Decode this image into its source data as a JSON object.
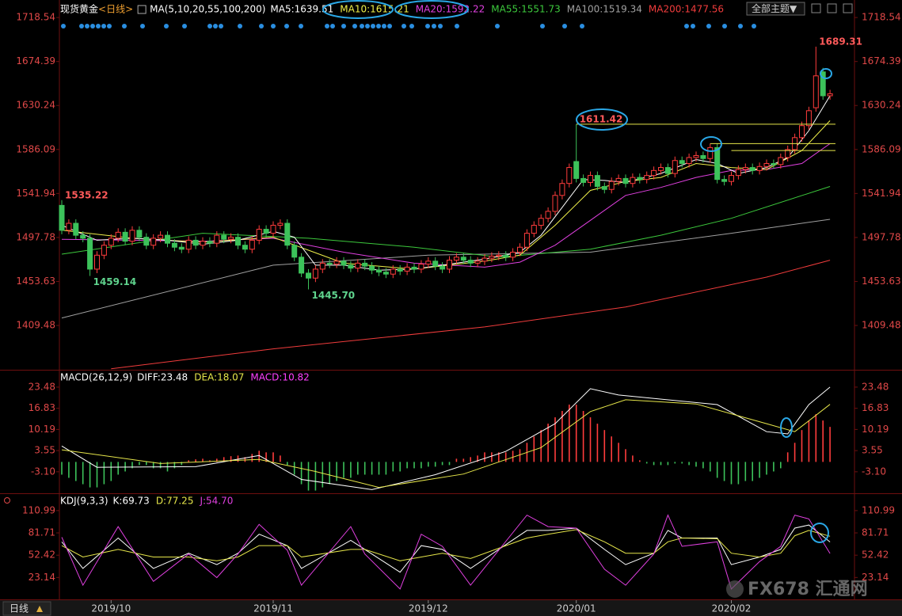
{
  "chart_data": [
    {
      "type": "candlestick",
      "title": "现货黄金",
      "period": "<日线>",
      "ma_label": "MA(5,10,20,55,100,200)",
      "categories": [
        null,
        null,
        null,
        null,
        null,
        null,
        null,
        "2019/10",
        null,
        null,
        null,
        null,
        null,
        null,
        null,
        null,
        null,
        null,
        null,
        null,
        null,
        null,
        null,
        null,
        null,
        null,
        null,
        null,
        null,
        null,
        "2019/11",
        null,
        null,
        null,
        null,
        null,
        null,
        null,
        null,
        null,
        null,
        null,
        null,
        null,
        null,
        null,
        null,
        null,
        null,
        null,
        null,
        null,
        "2019/12",
        null,
        null,
        null,
        null,
        null,
        null,
        null,
        null,
        null,
        null,
        null,
        null,
        null,
        null,
        null,
        null,
        null,
        null,
        null,
        null,
        "2020/01",
        null,
        null,
        null,
        null,
        null,
        null,
        null,
        null,
        null,
        null,
        null,
        null,
        null,
        null,
        null,
        null,
        null,
        null,
        null,
        null,
        null,
        "2020/02",
        null,
        null,
        null,
        null,
        null,
        null,
        null,
        null,
        null,
        null,
        null,
        null,
        null,
        null
      ],
      "open": [
        1530,
        1505,
        1512,
        1500,
        1497,
        1466,
        1480,
        1490,
        1497,
        1503,
        1494,
        1505,
        1498,
        1490,
        1497,
        1500,
        1492,
        1488,
        1486,
        1495,
        1490,
        1494,
        1492,
        1500,
        1496,
        1498,
        1490,
        1486,
        1495,
        1506,
        1502,
        1510,
        1512,
        1490,
        1478,
        1462,
        1457,
        1466,
        1472,
        1471,
        1474,
        1470,
        1467,
        1472,
        1469,
        1465,
        1463,
        1461,
        1466,
        1464,
        1468,
        1466,
        1471,
        1474,
        1469,
        1466,
        1475,
        1478,
        1475,
        1472,
        1474,
        1477,
        1479,
        1480,
        1478,
        1483,
        1488,
        1502,
        1510,
        1517,
        1524,
        1540,
        1552,
        1574,
        1557,
        1553,
        1560,
        1549,
        1546,
        1554,
        1557,
        1552,
        1558,
        1556,
        1560,
        1565,
        1568,
        1562,
        1575,
        1572,
        1578,
        1580,
        1577,
        1588,
        1556,
        1554,
        1560,
        1566,
        1568,
        1565,
        1569,
        1572,
        1571,
        1578,
        1586,
        1598,
        1610,
        1628,
        1664,
        1640
      ],
      "high": [
        1535.22,
        1516,
        1516,
        1504,
        1501,
        1484,
        1494,
        1501,
        1507,
        1507,
        1509,
        1509,
        1502,
        1501,
        1504,
        1504,
        1496,
        1492,
        1499,
        1499,
        1498,
        1498,
        1504,
        1504,
        1502,
        1502,
        1494,
        1499,
        1510,
        1510,
        1514,
        1516,
        1516,
        1494,
        1482,
        1466,
        1470,
        1476,
        1476,
        1478,
        1478,
        1474,
        1476,
        1476,
        1473,
        1469,
        1467,
        1470,
        1470,
        1472,
        1472,
        1475,
        1478,
        1478,
        1473,
        1479,
        1482,
        1482,
        1479,
        1478,
        1481,
        1483,
        1484,
        1484,
        1487,
        1492,
        1506,
        1514,
        1521,
        1528,
        1544,
        1556,
        1572,
        1611.42,
        1561,
        1564,
        1564,
        1553,
        1558,
        1561,
        1561,
        1562,
        1562,
        1564,
        1569,
        1572,
        1572,
        1579,
        1579,
        1582,
        1584,
        1584,
        1592,
        1592,
        1560,
        1564,
        1570,
        1572,
        1572,
        1573,
        1576,
        1576,
        1582,
        1590,
        1602,
        1614,
        1629,
        1689.31,
        1668,
        1646
      ],
      "low": [
        1501,
        1501,
        1496,
        1493,
        1459.14,
        1462,
        1476,
        1486,
        1493,
        1490,
        1490,
        1494,
        1486,
        1486,
        1493,
        1488,
        1484,
        1482,
        1482,
        1486,
        1486,
        1488,
        1488,
        1492,
        1492,
        1486,
        1482,
        1482,
        1491,
        1498,
        1498,
        1506,
        1486,
        1474,
        1458,
        1445.7,
        1453,
        1462,
        1467,
        1467,
        1466,
        1463,
        1463,
        1465,
        1461,
        1459,
        1457,
        1457,
        1460,
        1460,
        1462,
        1462,
        1467,
        1465,
        1462,
        1462,
        1471,
        1471,
        1468,
        1468,
        1470,
        1473,
        1475,
        1474,
        1474,
        1479,
        1484,
        1498,
        1506,
        1513,
        1520,
        1536,
        1548,
        1553,
        1549,
        1549,
        1545,
        1542,
        1542,
        1550,
        1548,
        1548,
        1552,
        1552,
        1556,
        1561,
        1558,
        1558,
        1568,
        1568,
        1574,
        1573,
        1573,
        1552,
        1550,
        1550,
        1556,
        1562,
        1561,
        1561,
        1565,
        1567,
        1567,
        1574,
        1582,
        1594,
        1606,
        1624,
        1636,
        1636
      ],
      "close": [
        1505,
        1512,
        1500,
        1497,
        1466,
        1480,
        1490,
        1497,
        1503,
        1494,
        1505,
        1498,
        1490,
        1497,
        1500,
        1492,
        1488,
        1486,
        1495,
        1490,
        1494,
        1492,
        1500,
        1496,
        1498,
        1490,
        1486,
        1495,
        1506,
        1502,
        1510,
        1512,
        1490,
        1478,
        1462,
        1457,
        1466,
        1472,
        1471,
        1474,
        1470,
        1467,
        1472,
        1469,
        1465,
        1463,
        1461,
        1466,
        1464,
        1468,
        1466,
        1471,
        1474,
        1469,
        1466,
        1475,
        1478,
        1475,
        1472,
        1474,
        1477,
        1479,
        1480,
        1478,
        1483,
        1488,
        1502,
        1510,
        1517,
        1524,
        1540,
        1552,
        1568,
        1557,
        1553,
        1560,
        1549,
        1546,
        1554,
        1557,
        1552,
        1558,
        1556,
        1560,
        1565,
        1568,
        1562,
        1575,
        1572,
        1578,
        1580,
        1577,
        1588,
        1556,
        1554,
        1560,
        1566,
        1568,
        1565,
        1569,
        1572,
        1571,
        1578,
        1586,
        1598,
        1610,
        1625,
        1660,
        1640,
        1642
      ],
      "up_color": "#ff3c3c",
      "down_color": "#3cc25a",
      "ylim": [
        1365,
        1725
      ],
      "yticks": [
        1409.48,
        1453.63,
        1497.78,
        1541.94,
        1586.09,
        1630.24,
        1674.39,
        1718.54
      ],
      "series": [
        {
          "name": "MA5:1639.51",
          "color": "#ffffff",
          "x": [
            0,
            5,
            10,
            15,
            20,
            25,
            30,
            33,
            36,
            40,
            45,
            50,
            55,
            60,
            65,
            68,
            71,
            74,
            77,
            80,
            85,
            90,
            93,
            96,
            100,
            103,
            106,
            109
          ],
          "values": [
            1510,
            1495,
            1497,
            1495,
            1491,
            1495,
            1504,
            1498,
            1470,
            1470,
            1465,
            1466,
            1471,
            1476,
            1483,
            1500,
            1528,
            1556,
            1555,
            1553,
            1562,
            1576,
            1572,
            1562,
            1568,
            1578,
            1605,
            1640
          ]
        },
        {
          "name": "MA10:1615.21",
          "color": "#f0f04a",
          "x": [
            0,
            10,
            20,
            30,
            35,
            40,
            50,
            60,
            65,
            70,
            75,
            80,
            85,
            90,
            95,
            100,
            105,
            109
          ],
          "values": [
            1505,
            1497,
            1493,
            1498,
            1485,
            1472,
            1466,
            1474,
            1480,
            1510,
            1545,
            1554,
            1558,
            1572,
            1568,
            1566,
            1585,
            1615
          ]
        },
        {
          "name": "MA20:1592.22",
          "color": "#e040e0",
          "x": [
            0,
            10,
            20,
            30,
            40,
            50,
            60,
            65,
            70,
            75,
            80,
            85,
            90,
            95,
            100,
            105,
            109
          ],
          "values": [
            1496,
            1495,
            1494,
            1497,
            1483,
            1472,
            1468,
            1473,
            1490,
            1515,
            1540,
            1548,
            1558,
            1565,
            1566,
            1572,
            1592
          ]
        },
        {
          "name": "MA55:1551.73",
          "color": "#3cc83c",
          "x": [
            0,
            20,
            35,
            50,
            62,
            75,
            85,
            95,
            109
          ],
          "values": [
            1481,
            1502,
            1497,
            1488,
            1478,
            1486,
            1500,
            1517,
            1549
          ]
        },
        {
          "name": "MA100:1519.34",
          "color": "#a0a0a0",
          "x": [
            0,
            30,
            52,
            75,
            95,
            109
          ],
          "values": [
            1417,
            1470,
            1480,
            1483,
            1502,
            1516
          ]
        },
        {
          "name": "MA200:1477.56",
          "color": "#f03c3c",
          "x": [
            7,
            30,
            60,
            80,
            100,
            109
          ],
          "values": [
            1366,
            1386,
            1408,
            1428,
            1458,
            1475
          ]
        }
      ],
      "level_color": "#e6e64a",
      "levels": [
        {
          "x": 73,
          "y": 1611.42
        },
        {
          "x": 92,
          "y": 1592
        },
        {
          "x": 95,
          "y": 1585
        }
      ],
      "annotations": [
        {
          "label": "1689.31",
          "x": 107,
          "y": 1689.31,
          "kind": "high"
        },
        {
          "label": "1611.42",
          "x": 73,
          "y": 1611.42,
          "kind": "high"
        },
        {
          "label": "1535.22",
          "x": 0,
          "y": 1535.22,
          "kind": "high"
        },
        {
          "label": "1459.14",
          "x": 4,
          "y": 1459.14,
          "kind": "low"
        },
        {
          "label": "1445.70",
          "x": 35,
          "y": 1445.7,
          "kind": "low"
        }
      ]
    },
    {
      "type": "combo",
      "title": "MACD(26,12,9)",
      "ylim": [
        -9.6,
        26.2
      ],
      "yticks": [
        {
          "value": -3.1,
          "label": "-3.10"
        },
        3.55,
        10.19,
        16.83,
        23.48
      ],
      "series": [
        {
          "name": "DIFF:23.48",
          "kind": "line",
          "color": "#ffffff",
          "x": [
            0,
            5,
            19,
            28,
            34,
            44,
            53,
            63,
            70,
            75,
            79,
            93,
            100,
            103,
            106,
            109
          ],
          "values": [
            5,
            -1.7,
            -1.5,
            2,
            -5.5,
            -8.7,
            -4,
            3.3,
            12,
            23,
            21,
            18,
            9.5,
            8.8,
            18,
            23.48
          ]
        },
        {
          "name": "DEA:18.07",
          "kind": "line",
          "color": "#e6e64a",
          "x": [
            0,
            14,
            28,
            36,
            45,
            57,
            68,
            75,
            80,
            90,
            100,
            104,
            109
          ],
          "values": [
            3.8,
            -0.5,
            0.8,
            -3,
            -8,
            -3.8,
            4.5,
            15.8,
            19.5,
            18.2,
            12,
            9.5,
            18.07
          ]
        },
        {
          "name": "MACD:10.82",
          "kind": "bar",
          "color": "#ff40ff",
          "up_color": "#ff3c3c",
          "down_color": "#3cc25a",
          "values": [
            -4,
            -5,
            -6,
            -7,
            -8,
            -8,
            -7,
            -6,
            -4,
            -3,
            -2,
            -1,
            -1,
            -2,
            -2,
            -3,
            -2,
            -1,
            0.5,
            0.8,
            1,
            0.5,
            1,
            1.5,
            1.8,
            2,
            1.5,
            2.5,
            3.5,
            3,
            3,
            2,
            -1,
            -4,
            -7,
            -9,
            -9,
            -8,
            -7,
            -6,
            -5,
            -5,
            -4,
            -4,
            -4,
            -4,
            -4,
            -3,
            -3,
            -2,
            -2,
            -2,
            -1.5,
            -1.5,
            -1,
            -1,
            1,
            1,
            1.5,
            2,
            3,
            3,
            3,
            3,
            3.5,
            4,
            6,
            8,
            10,
            12,
            14,
            16,
            18,
            18,
            16,
            14,
            12,
            10,
            8,
            6,
            4,
            2,
            0.5,
            -0.5,
            -1,
            -1,
            -1,
            -0.5,
            -0.5,
            -1,
            -1.5,
            -2,
            -3,
            -5,
            -6,
            -7,
            -7,
            -6,
            -6,
            -5,
            -4,
            -3,
            -2,
            3,
            6,
            10,
            13,
            15,
            13,
            11
          ]
        }
      ]
    },
    {
      "type": "line",
      "title": "KDJ(9,3,3)",
      "ylim": [
        -4.6,
        122.3
      ],
      "yticks": [
        23.14,
        52.42,
        81.71,
        110.99
      ],
      "x": [
        0,
        3,
        8,
        13,
        18,
        22,
        25,
        28,
        32,
        34,
        41,
        43,
        48,
        51,
        54,
        58,
        66,
        69,
        73,
        77,
        80,
        84,
        86,
        88,
        93,
        95,
        99,
        102,
        104,
        106,
        109
      ],
      "series": [
        {
          "name": "K:69.73",
          "color": "#ffffff",
          "values": [
            70,
            35,
            75,
            35,
            55,
            40,
            55,
            80,
            65,
            35,
            72,
            60,
            30,
            65,
            60,
            35,
            85,
            85,
            88,
            60,
            40,
            55,
            85,
            75,
            75,
            40,
            50,
            60,
            88,
            92,
            69.73
          ]
        },
        {
          "name": "D:77.25",
          "color": "#e6e64a",
          "values": [
            65,
            50,
            60,
            50,
            50,
            45,
            50,
            65,
            65,
            50,
            60,
            60,
            45,
            50,
            55,
            48,
            75,
            80,
            86,
            70,
            55,
            55,
            70,
            75,
            74,
            55,
            50,
            55,
            78,
            85,
            77.25
          ]
        },
        {
          "name": "J:54.70",
          "color": "#e040e0",
          "values": [
            76,
            13,
            90,
            18,
            54,
            23,
            54,
            93,
            59,
            13,
            90,
            54,
            8,
            80,
            64,
            13,
            105,
            90,
            88,
            34,
            13,
            54,
            105,
            64,
            70,
            8,
            44,
            64,
            105,
            100,
            54.7
          ]
        }
      ]
    }
  ],
  "ui": {
    "theme_button": "全部主题▼",
    "period_button": "日线",
    "watermark": "FX678 汇通网"
  }
}
